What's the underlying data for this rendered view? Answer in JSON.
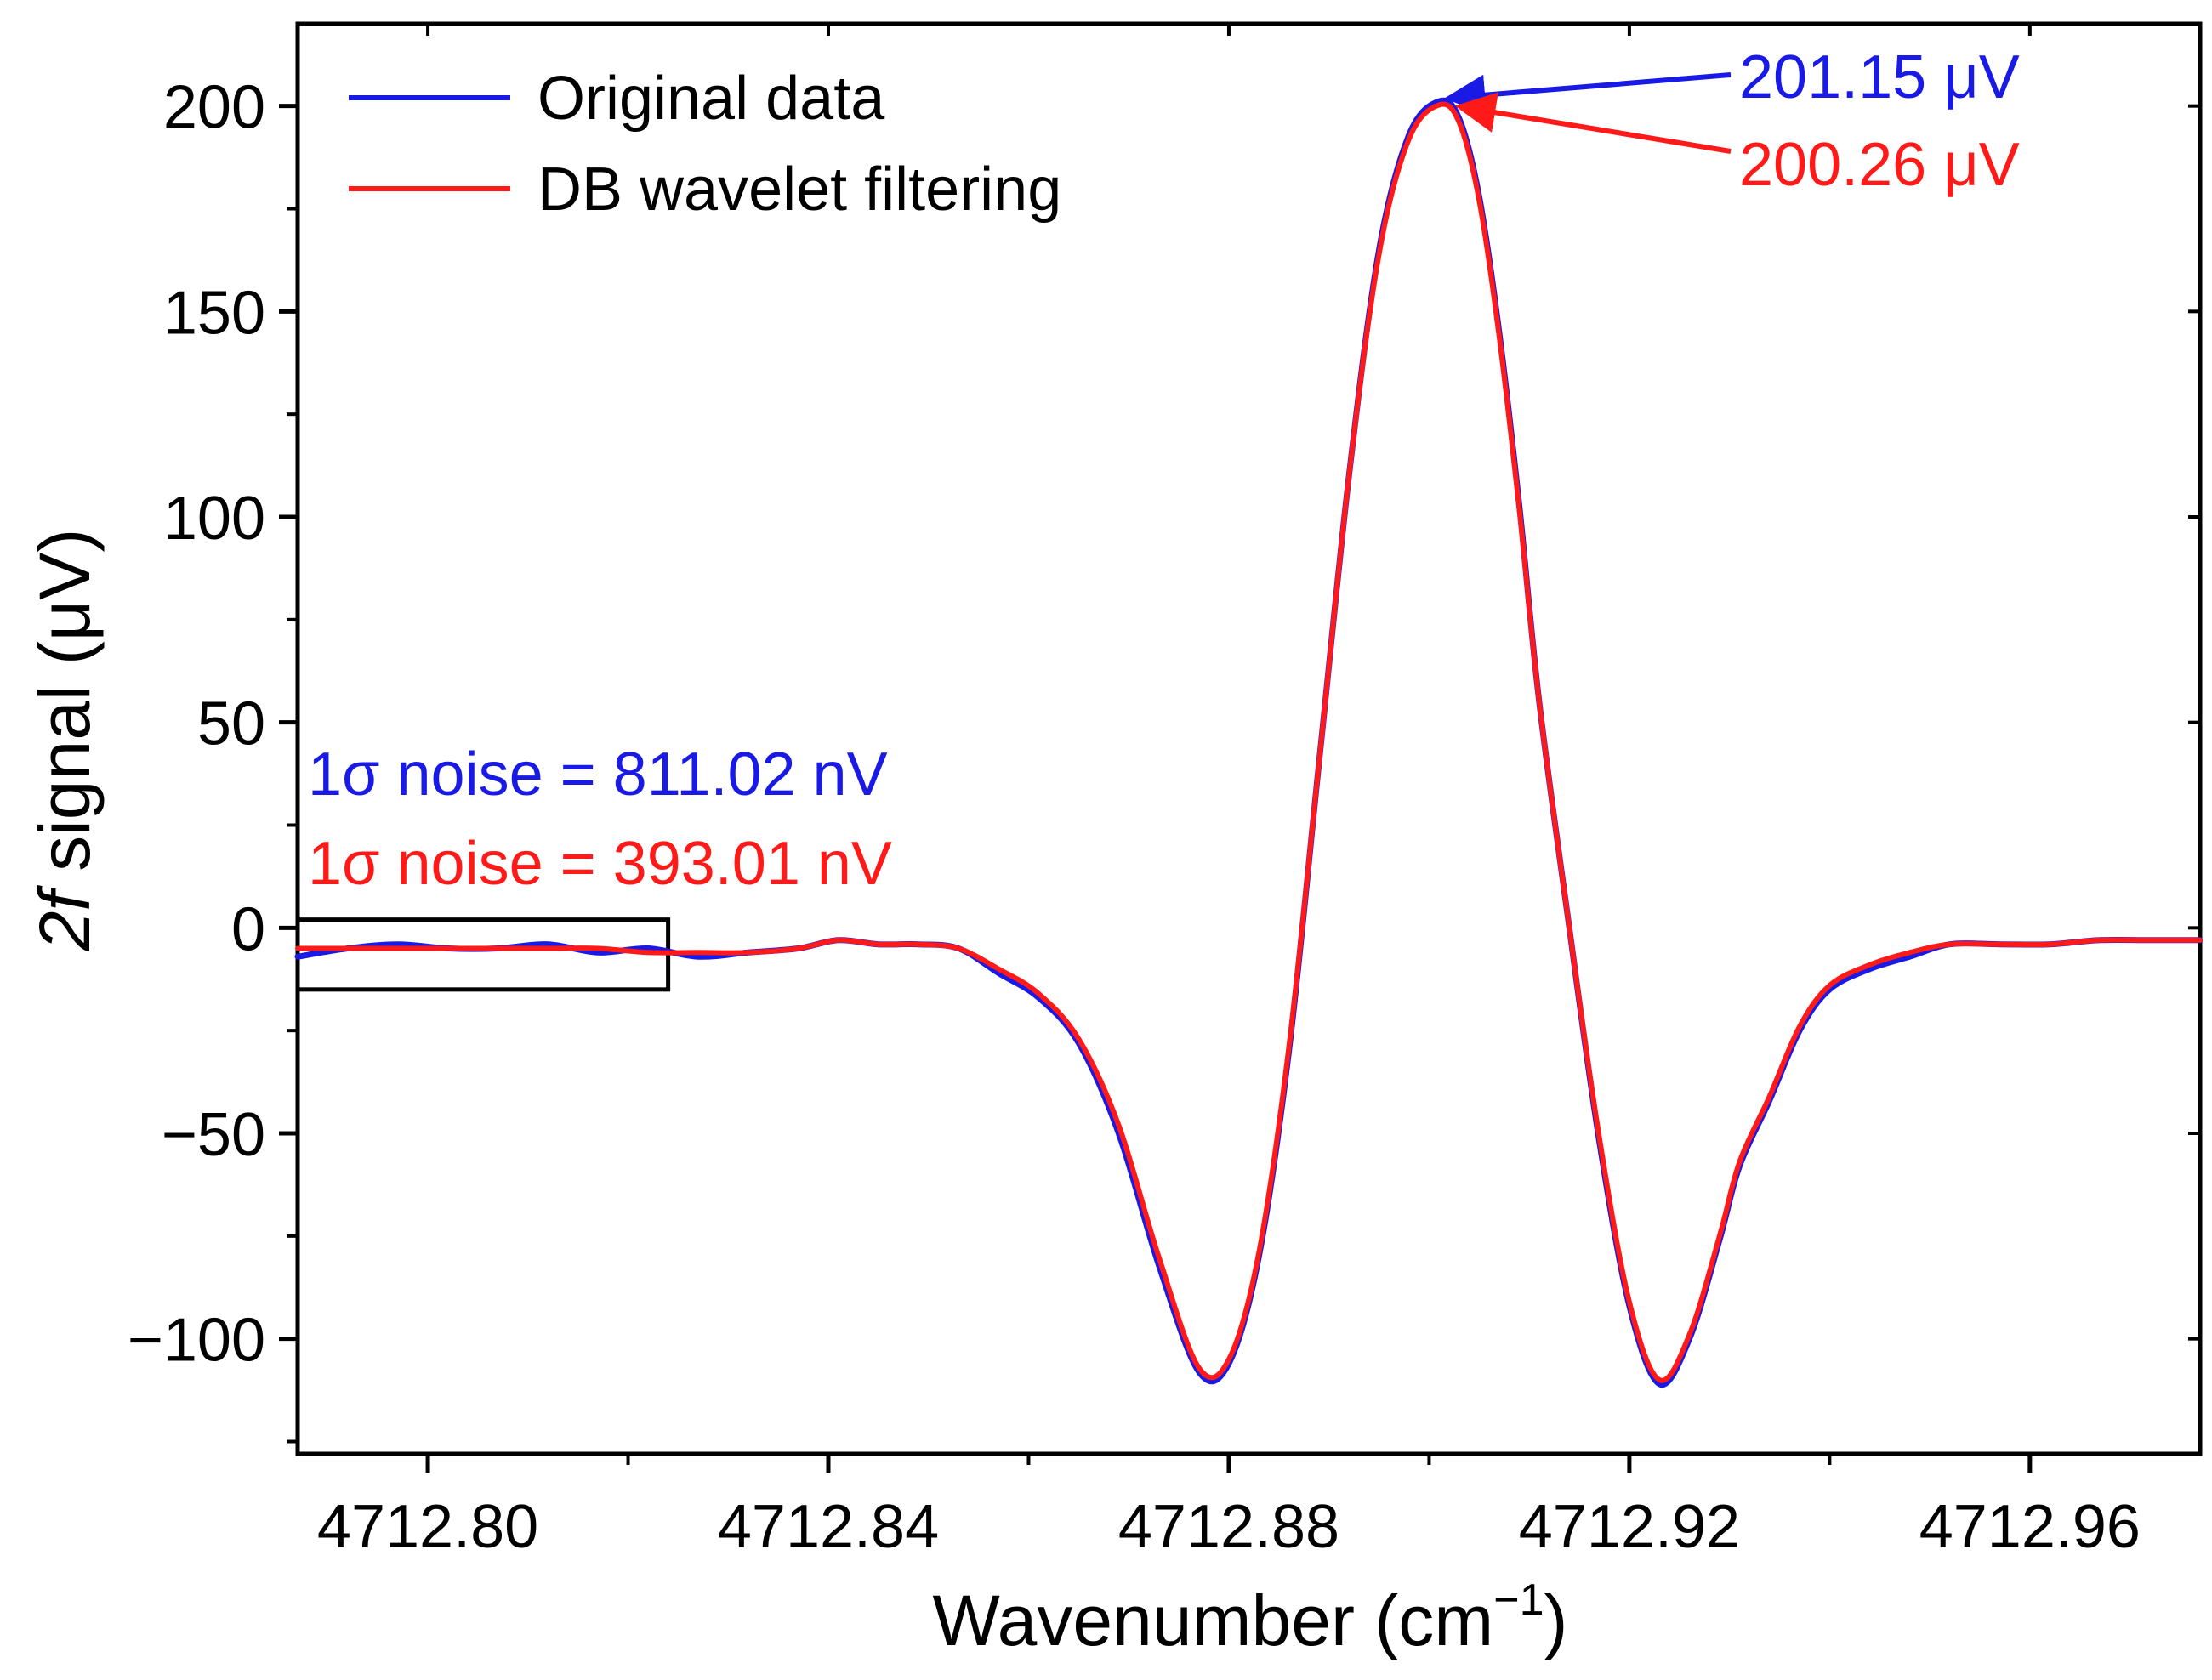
{
  "chart_data": {
    "type": "line",
    "xlabel": "Wavenumber (cm",
    "xlabel_sup": "−1",
    "xlabel_close": ")",
    "ylabel_italic": "2f",
    "ylabel_rest": " signal (μV)",
    "xlim": [
      4712.787,
      4712.977
    ],
    "ylim": [
      -128,
      220
    ],
    "x_ticks": [
      4712.8,
      4712.84,
      4712.88,
      4712.92,
      4712.96
    ],
    "x_tick_labels": [
      "4712.80",
      "4712.84",
      "4712.88",
      "4712.92",
      "4712.96"
    ],
    "x_minor_ticks": [
      4712.82,
      4712.86,
      4712.9,
      4712.94
    ],
    "y_ticks": [
      200,
      150,
      100,
      50,
      0,
      -50,
      -100
    ],
    "y_tick_labels": [
      "200",
      "150",
      "100",
      "50",
      "0",
      "−50",
      "−100"
    ],
    "y_minor_ticks": [
      175,
      125,
      75,
      25,
      -25,
      -75,
      -125
    ],
    "legend": {
      "position": "top-left",
      "entries": [
        {
          "label": "Original data",
          "color": "#1a1ae6"
        },
        {
          "label": "DB wavelet filtering",
          "color": "#ff1a1a"
        }
      ]
    },
    "series": [
      {
        "name": "Original data",
        "color": "#1a1ae6",
        "x": [
          4712.787,
          4712.792,
          4712.797,
          4712.802,
          4712.807,
          4712.812,
          4712.817,
          4712.822,
          4712.827,
          4712.832,
          4712.837,
          4712.841,
          4712.845,
          4712.849,
          4712.853,
          4712.857,
          4712.861,
          4712.865,
          4712.869,
          4712.873,
          4712.877,
          4712.88,
          4712.883,
          4712.886,
          4712.889,
          4712.892,
          4712.895,
          4712.898,
          4712.901,
          4712.903,
          4712.905,
          4712.907,
          4712.909,
          4712.911,
          4712.914,
          4712.917,
          4712.92,
          4712.923,
          4712.926,
          4712.929,
          4712.931,
          4712.934,
          4712.937,
          4712.94,
          4712.944,
          4712.948,
          4712.952,
          4712.957,
          4712.962,
          4712.967,
          4712.972,
          4712.977
        ],
        "y": [
          -7,
          -5,
          -4,
          -5,
          -5,
          -4,
          -6,
          -5,
          -7,
          -6,
          -5,
          -3,
          -4,
          -4,
          -5,
          -11,
          -17,
          -28,
          -50,
          -82,
          -108,
          -106,
          -80,
          -30,
          40,
          110,
          165,
          193,
          201.15,
          197,
          178,
          145,
          103,
          55,
          0,
          -52,
          -92,
          -111,
          -100,
          -76,
          -58,
          -42,
          -25,
          -15,
          -10,
          -7,
          -4,
          -4,
          -4,
          -3,
          -3,
          -3
        ]
      },
      {
        "name": "DB wavelet filtering",
        "color": "#ff1a1a",
        "x": [
          4712.787,
          4712.792,
          4712.797,
          4712.802,
          4712.807,
          4712.812,
          4712.817,
          4712.822,
          4712.827,
          4712.832,
          4712.837,
          4712.841,
          4712.845,
          4712.849,
          4712.853,
          4712.857,
          4712.861,
          4712.865,
          4712.869,
          4712.873,
          4712.877,
          4712.88,
          4712.883,
          4712.886,
          4712.889,
          4712.892,
          4712.895,
          4712.898,
          4712.901,
          4712.903,
          4712.905,
          4712.907,
          4712.909,
          4712.911,
          4712.914,
          4712.917,
          4712.92,
          4712.923,
          4712.926,
          4712.929,
          4712.931,
          4712.934,
          4712.937,
          4712.94,
          4712.944,
          4712.948,
          4712.952,
          4712.957,
          4712.962,
          4712.967,
          4712.972,
          4712.977
        ],
        "y": [
          -5,
          -5,
          -5,
          -5,
          -5,
          -5,
          -5,
          -6,
          -6,
          -6,
          -5,
          -3,
          -4,
          -4,
          -5,
          -10,
          -16,
          -27,
          -48,
          -80,
          -107,
          -105,
          -79,
          -29,
          40,
          110,
          164,
          192,
          200.26,
          196,
          177,
          144,
          102,
          55,
          0,
          -51,
          -91,
          -110,
          -99,
          -75,
          -57,
          -41,
          -24,
          -14,
          -9,
          -6,
          -4,
          -4,
          -4,
          -3,
          -3,
          -3
        ]
      }
    ],
    "annotations": {
      "peak_original": {
        "text": "201.15 μV",
        "color": "#1a1ae6",
        "target_x": 4712.9005,
        "target_y": 201.15
      },
      "peak_filtered": {
        "text": "200.26 μV",
        "color": "#ff1a1a",
        "target_x": 4712.9012,
        "target_y": 200.26
      },
      "noise_original": {
        "text": "1σ noise = 811.02 nV",
        "color": "#1a1ae6"
      },
      "noise_filtered": {
        "text": "1σ noise = 393.01 nV",
        "color": "#ff1a1a"
      },
      "noise_region": {
        "x_range": [
          4712.787,
          4712.824
        ],
        "y_range": [
          -15,
          2
        ]
      }
    }
  }
}
